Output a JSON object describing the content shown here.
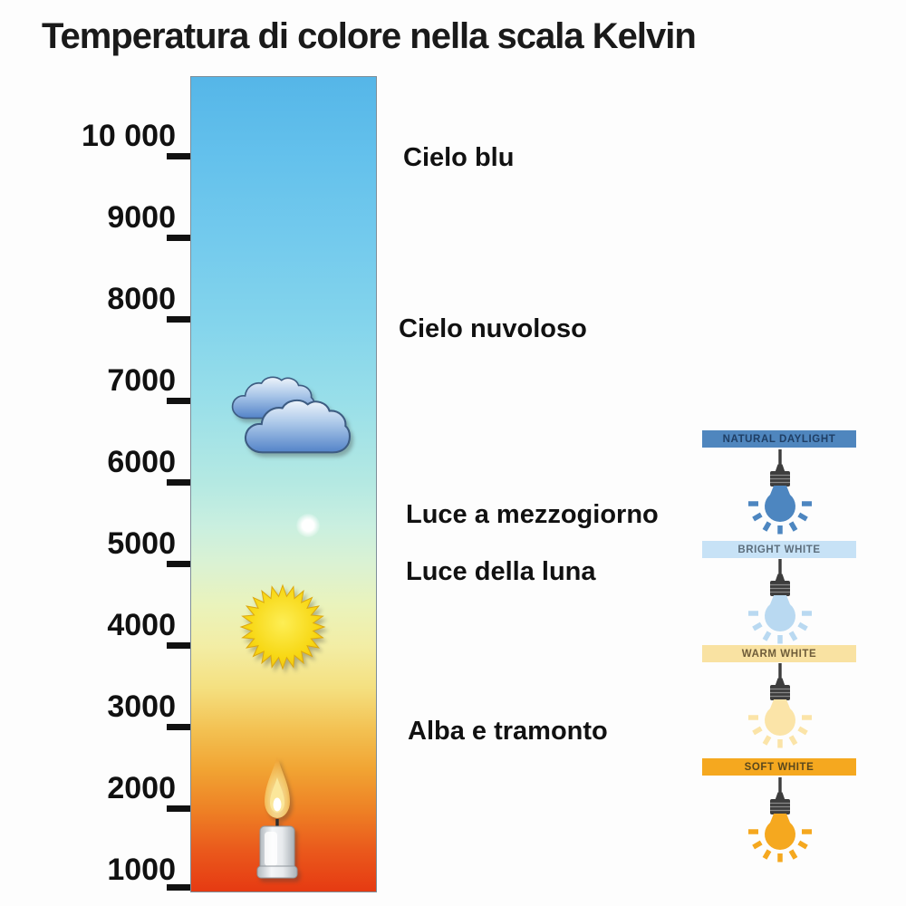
{
  "title": "Temperatura di colore nella scala Kelvin",
  "kelvin_scale": {
    "ticks": [
      {
        "kelvin": 10000,
        "label": "10 000"
      },
      {
        "kelvin": 9000,
        "label": "9000"
      },
      {
        "kelvin": 8000,
        "label": "8000"
      },
      {
        "kelvin": 7000,
        "label": "7000"
      },
      {
        "kelvin": 6000,
        "label": "6000"
      },
      {
        "kelvin": 5000,
        "label": "5000"
      },
      {
        "kelvin": 4000,
        "label": "4000"
      },
      {
        "kelvin": 3000,
        "label": "3000"
      },
      {
        "kelvin": 2000,
        "label": "2000"
      },
      {
        "kelvin": 1000,
        "label": "1000"
      }
    ],
    "gradient_stops": [
      {
        "pos": "0%",
        "color": "#55b6e8"
      },
      {
        "pos": "10%",
        "color": "#64c1ec"
      },
      {
        "pos": "20%",
        "color": "#73caed"
      },
      {
        "pos": "30%",
        "color": "#83d4ec"
      },
      {
        "pos": "40%",
        "color": "#99dfe9"
      },
      {
        "pos": "50%",
        "color": "#b5e9e2"
      },
      {
        "pos": "55%",
        "color": "#c9efe0"
      },
      {
        "pos": "60%",
        "color": "#dbf2d2"
      },
      {
        "pos": "65%",
        "color": "#eaf3bb"
      },
      {
        "pos": "70%",
        "color": "#f3eda4"
      },
      {
        "pos": "75%",
        "color": "#f4e080"
      },
      {
        "pos": "80%",
        "color": "#f3c253"
      },
      {
        "pos": "85%",
        "color": "#f1a433"
      },
      {
        "pos": "90%",
        "color": "#ee8125"
      },
      {
        "pos": "95%",
        "color": "#ea591c"
      },
      {
        "pos": "100%",
        "color": "#e63a12"
      }
    ],
    "icons": [
      {
        "name": "clouds-icon",
        "kelvin_approx": 6800
      },
      {
        "name": "moon-dot-icon",
        "kelvin_approx": 5500
      },
      {
        "name": "sun-icon",
        "kelvin_approx": 4300
      },
      {
        "name": "candle-icon",
        "kelvin_approx": 1600
      }
    ]
  },
  "annotations": [
    {
      "label": "Cielo blu",
      "kelvin_approx": 10000
    },
    {
      "label": "Cielo nuvoloso",
      "kelvin_approx": 7900
    },
    {
      "label": "Luce a mezzogiorno",
      "kelvin_approx": 5600
    },
    {
      "label": "Luce della luna",
      "kelvin_approx": 4900
    },
    {
      "label": "Alba e tramonto",
      "kelvin_approx": 3000
    }
  ],
  "bulb_panels": [
    {
      "label": "NATURAL DAYLIGHT",
      "banner_color": "#4f86be",
      "bulb_color": "#4d86c0",
      "text_color": "#1f3e64"
    },
    {
      "label": "BRIGHT WHITE",
      "banner_color": "#c7e2f6",
      "bulb_color": "#b9d9f1",
      "text_color": "#5d6e7c"
    },
    {
      "label": "WARM WHITE",
      "banner_color": "#f9e2a2",
      "bulb_color": "#fbe4a8",
      "text_color": "#6e5c39"
    },
    {
      "label": "SOFT WHITE",
      "banner_color": "#f5a81f",
      "bulb_color": "#f5a81f",
      "text_color": "#59471d"
    }
  ]
}
